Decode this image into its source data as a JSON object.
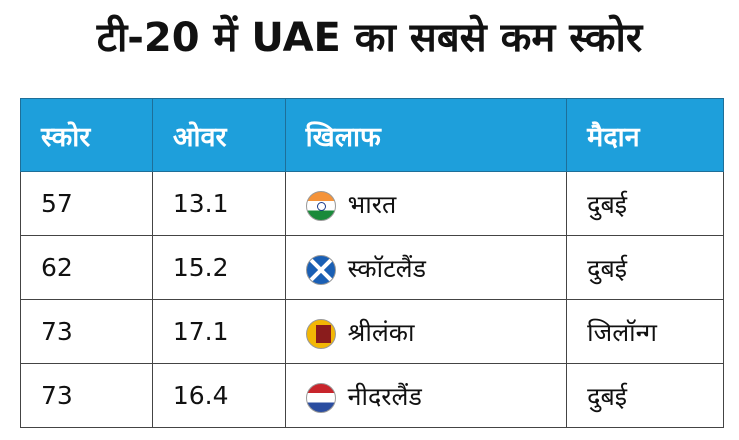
{
  "title": "टी-20 में UAE का सबसे कम स्कोर",
  "chart_data": {
    "type": "table",
    "title": "टी-20 में UAE का सबसे कम स्कोर",
    "columns": [
      "स्कोर",
      "ओवर",
      "खिलाफ",
      "मैदान"
    ],
    "rows": [
      {
        "score": "57",
        "overs": "13.1",
        "against": "भारत",
        "flag": "india-flag-icon",
        "venue": "दुबई"
      },
      {
        "score": "62",
        "overs": "15.2",
        "against": "स्कॉटलैंड",
        "flag": "scotland-flag-icon",
        "venue": "दुबई"
      },
      {
        "score": "73",
        "overs": "17.1",
        "against": "श्रीलंका",
        "flag": "sri-lanka-flag-icon",
        "venue": "जिलॉन्ग"
      },
      {
        "score": "73",
        "overs": "16.4",
        "against": "नीदरलैंड",
        "flag": "netherlands-flag-icon",
        "venue": "दुबई"
      }
    ],
    "header_color": "#1e9fdb"
  }
}
